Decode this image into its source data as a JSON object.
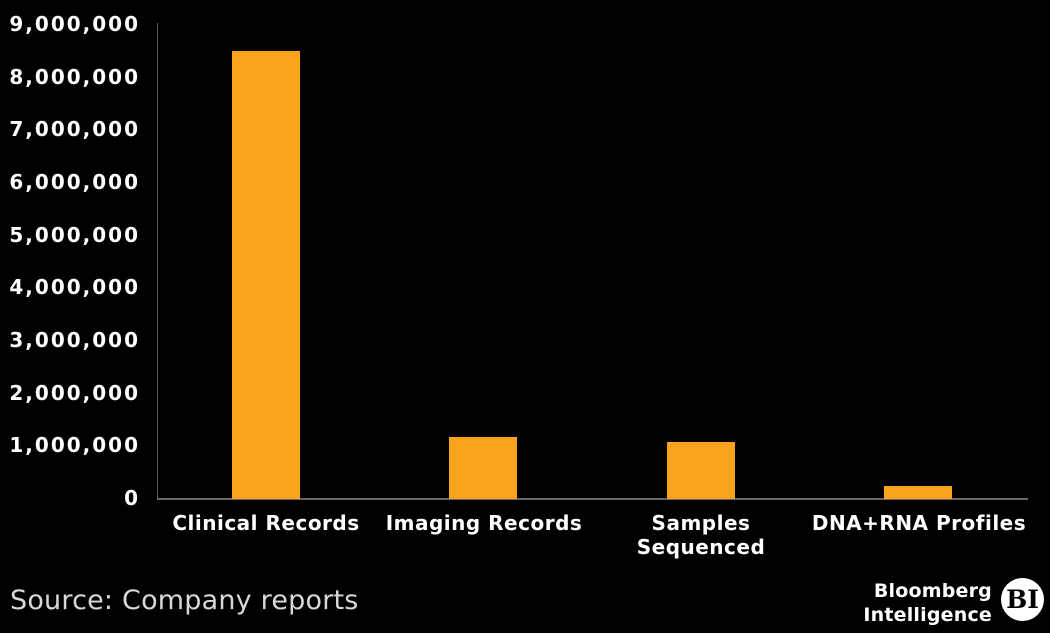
{
  "chart_data": {
    "type": "bar",
    "title": "",
    "xlabel": "",
    "ylabel": "",
    "categories": [
      "Clinical Records",
      "Imaging Records",
      "Samples Sequenced",
      "DNA+RNA Profiles"
    ],
    "category_display": [
      "Clinical Records",
      "Imaging Records",
      "Samples\nSequenced",
      "DNA+RNA Profiles"
    ],
    "values": [
      8500000,
      1170000,
      1080000,
      240000
    ],
    "ylim": [
      0,
      9000000
    ],
    "ytick_step": 1000000,
    "ytick_labels": [
      "0",
      "1,000,000",
      "2,000,000",
      "3,000,000",
      "4,000,000",
      "5,000,000",
      "6,000,000",
      "7,000,000",
      "8,000,000",
      "9,000,000"
    ],
    "grid": false,
    "legend": false,
    "bar_color": "#FBA31C",
    "axis_color": "#5A5A5A",
    "background": "#000000",
    "tick_label_color": "#FFFFFF",
    "category_label_color": "#FFFFFF"
  },
  "footer": {
    "source_text": "Source: Company reports",
    "source_color": "#D8D8D8",
    "brand_line1": "Bloomberg",
    "brand_line2": "Intelligence",
    "brand_badge": "BI",
    "brand_color": "#FFFFFF"
  }
}
